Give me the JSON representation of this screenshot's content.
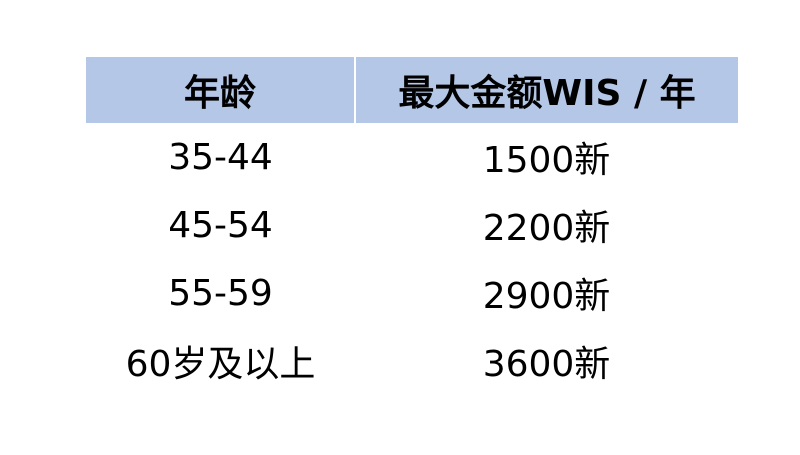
{
  "table": {
    "headers": [
      "年龄",
      "最大金额WIS / 年"
    ],
    "rows": [
      [
        "35-44",
        "1500新"
      ],
      [
        "45-54",
        "2200新"
      ],
      [
        "55-59",
        "2900新"
      ],
      [
        "60岁及以上",
        "3600新"
      ]
    ]
  },
  "colors": {
    "header_bg": "#b4c7e7"
  }
}
